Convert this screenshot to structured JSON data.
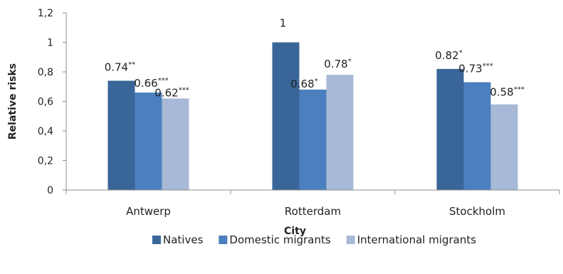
{
  "chart_data": {
    "type": "bar",
    "title": "",
    "xlabel": "City",
    "ylabel": "Relative risks",
    "ylim": [
      0,
      1.2
    ],
    "yticks": [
      0,
      0.2,
      0.4,
      0.6,
      0.8,
      1.0,
      1.2
    ],
    "ytick_labels": [
      "0",
      "0,2",
      "0,4",
      "0,6",
      "0,8",
      "1",
      "1,2"
    ],
    "categories": [
      "Antwerp",
      "Rotterdam",
      "Stockholm"
    ],
    "grid": false,
    "legend_position": "bottom",
    "series": [
      {
        "name": "Natives",
        "color": "#3a6599",
        "values": [
          0.74,
          1.0,
          0.82
        ],
        "labels": [
          "0.74",
          "1",
          "0.82"
        ],
        "sig": [
          "**",
          "",
          "*"
        ]
      },
      {
        "name": "Domestic migrants",
        "color": "#4c7fbd",
        "values": [
          0.66,
          0.68,
          0.73
        ],
        "labels": [
          "0.66",
          "0.68",
          "0.73"
        ],
        "sig": [
          "***",
          "*",
          "***"
        ]
      },
      {
        "name": "International migrants",
        "color": "#a7b9d6",
        "values": [
          0.62,
          0.78,
          0.58
        ],
        "labels": [
          "0.62",
          "0.78",
          "0.58"
        ],
        "sig": [
          "***",
          "*",
          "***"
        ]
      }
    ]
  }
}
